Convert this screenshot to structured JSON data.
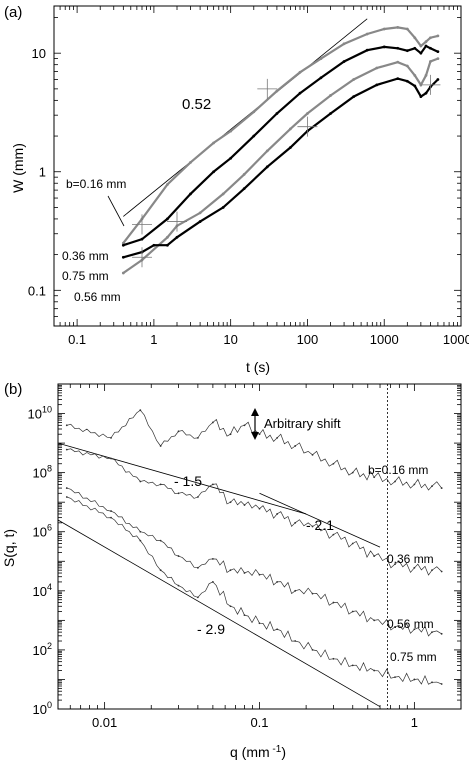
{
  "chart_data": [
    {
      "panel_label": "(a)",
      "type": "line",
      "xscale": "log",
      "yscale": "log",
      "xlabel": "t (s)",
      "ylabel": "W  (mm)",
      "xlim": [
        0.05,
        10000
      ],
      "ylim": [
        0.05,
        25
      ],
      "xticks": [
        {
          "v": 0.1,
          "label": "0.1"
        },
        {
          "v": 1,
          "label": "1"
        },
        {
          "v": 10,
          "label": "10"
        },
        {
          "v": 100,
          "label": "100"
        },
        {
          "v": 1000,
          "label": "1000"
        },
        {
          "v": 10000,
          "label": "10000"
        }
      ],
      "yticks": [
        {
          "v": 0.1,
          "label": "0.1"
        },
        {
          "v": 1,
          "label": "1"
        },
        {
          "v": 10,
          "label": "10"
        }
      ],
      "reference_line": {
        "label": "0.52",
        "x": [
          0.4,
          600
        ],
        "y": [
          0.42,
          19.5
        ]
      },
      "series": [
        {
          "name": "b=0.16 mm",
          "color": "#888888",
          "x": [
            0.4,
            0.7,
            1.5,
            3,
            6,
            10,
            20,
            40,
            80,
            150,
            300,
            600,
            1000,
            1500,
            2000,
            2500,
            3000,
            3500,
            4000,
            5000
          ],
          "y": [
            0.25,
            0.4,
            0.78,
            1.2,
            1.75,
            2.2,
            3.2,
            4.8,
            6.9,
            9.0,
            12.0,
            14.5,
            16.0,
            16.5,
            16.0,
            13.5,
            11.5,
            12.5,
            13.5,
            14.0
          ]
        },
        {
          "name": "0.36 mm",
          "color": "#000000",
          "x": [
            0.4,
            0.7,
            1.5,
            3,
            6,
            10,
            20,
            40,
            80,
            150,
            300,
            600,
            1000,
            1500,
            2000,
            2500,
            3000,
            3500,
            4000,
            5000
          ],
          "y": [
            0.24,
            0.27,
            0.4,
            0.65,
            1.0,
            1.3,
            2.0,
            3.1,
            4.6,
            6.2,
            8.5,
            10.6,
            11.3,
            11.0,
            10.5,
            11.0,
            10.0,
            11.5,
            11.0,
            10.3
          ]
        },
        {
          "name": "0.56 mm",
          "color": "#888888",
          "x": [
            0.4,
            0.7,
            1.5,
            2,
            4,
            8,
            15,
            30,
            60,
            100,
            200,
            400,
            800,
            1500,
            2000,
            2500,
            3000,
            3500,
            4000,
            5000
          ],
          "y": [
            0.14,
            0.18,
            0.28,
            0.35,
            0.45,
            0.65,
            0.95,
            1.5,
            2.3,
            3.1,
            4.4,
            6.0,
            7.5,
            8.4,
            7.8,
            6.5,
            5.4,
            6.5,
            8.5,
            9.0
          ]
        },
        {
          "name": "0.75 mm",
          "color": "#000000",
          "x": [
            0.4,
            0.7,
            1.0,
            1.5,
            2,
            4,
            8,
            15,
            30,
            60,
            100,
            200,
            400,
            800,
            1500,
            2000,
            2500,
            3000,
            3500,
            4000,
            5000
          ],
          "y": [
            0.19,
            0.21,
            0.24,
            0.24,
            0.28,
            0.38,
            0.5,
            0.72,
            1.1,
            1.6,
            2.2,
            3.1,
            4.3,
            5.4,
            6.1,
            5.8,
            5.3,
            4.3,
            4.6,
            5.2,
            6.0
          ]
        }
      ],
      "annotations": [
        {
          "text": "0.52"
        },
        {
          "text": "b=0.16 mm"
        },
        {
          "text": "0.36 mm"
        },
        {
          "text": "0.75 mm"
        },
        {
          "text": "0.56 mm"
        }
      ]
    },
    {
      "panel_label": "(b)",
      "type": "line",
      "xscale": "log",
      "yscale": "log",
      "xlabel": "q (mm -1)",
      "ylabel": "S(q, t)",
      "xlim": [
        0.005,
        2
      ],
      "ylim": [
        1,
        100000000000.0
      ],
      "xticks": [
        {
          "v": 0.01,
          "label": "0.01"
        },
        {
          "v": 0.1,
          "label": "0.1"
        },
        {
          "v": 1,
          "label": "1"
        }
      ],
      "yticks": [
        {
          "v": 1,
          "exp": "0"
        },
        {
          "v": 100,
          "exp": "2"
        },
        {
          "v": 10000,
          "exp": "4"
        },
        {
          "v": 1000000,
          "exp": "6"
        },
        {
          "v": 100000000,
          "exp": "8"
        },
        {
          "v": 10000000000,
          "exp": "10"
        }
      ],
      "vertical_line_q": 0.67,
      "annotations": [
        {
          "text": "Arbitrary shift"
        },
        {
          "text": "- 1.5"
        },
        {
          "text": "- 2.1"
        },
        {
          "text": "- 2.9"
        },
        {
          "text": "b=0.16 mm"
        },
        {
          "text": "0.36 mm"
        },
        {
          "text": "0.56 mm"
        },
        {
          "text": "0.75 mm"
        }
      ],
      "fit_lines": [
        {
          "slope": -1.5,
          "x": [
            0.005,
            0.2
          ],
          "y": [
            1000000000.0,
            4000000.0
          ]
        },
        {
          "slope": -2.1,
          "x": [
            0.1,
            0.6
          ],
          "y": [
            20000000.0,
            300000.0
          ]
        },
        {
          "slope": -2.9,
          "x": [
            0.005,
            0.6
          ],
          "y": [
            2500000.0,
            1.2
          ]
        }
      ],
      "series": [
        {
          "name": "b=0.16 mm",
          "color": "#333333",
          "x": [
            0.0057,
            0.011,
            0.017,
            0.023,
            0.03,
            0.04,
            0.05,
            0.065,
            0.08,
            0.1,
            0.13,
            0.17,
            0.22,
            0.3,
            0.4,
            0.55,
            0.75,
            1.0,
            1.3,
            1.5
          ],
          "y": [
            4000000000.0,
            1500000000.0,
            13000000000.0,
            800000000.0,
            2500000000.0,
            1500000000.0,
            5000000000.0,
            2000000000.0,
            4000000000.0,
            2000000000.0,
            1500000000.0,
            800000000.0,
            400000000.0,
            200000000.0,
            100000000.0,
            70000000.0,
            50000000.0,
            40000000.0,
            35000000.0,
            30000000.0
          ]
        },
        {
          "name": "0.36 mm",
          "color": "#333333",
          "x": [
            0.0057,
            0.011,
            0.017,
            0.023,
            0.03,
            0.04,
            0.05,
            0.065,
            0.08,
            0.1,
            0.13,
            0.17,
            0.22,
            0.3,
            0.4,
            0.55,
            0.75,
            1.0,
            1.3,
            1.5
          ],
          "y": [
            600000000.0,
            300000000.0,
            50000000.0,
            40000000.0,
            20000000.0,
            15000000.0,
            40000000.0,
            10000000.0,
            8000000.0,
            6000000.0,
            4000000.0,
            2000000.0,
            1500000.0,
            800000.0,
            400000.0,
            150000.0,
            80000.0,
            60000.0,
            50000.0,
            45000.0
          ]
        },
        {
          "name": "0.56 mm",
          "color": "#333333",
          "x": [
            0.0057,
            0.011,
            0.017,
            0.023,
            0.03,
            0.04,
            0.05,
            0.065,
            0.08,
            0.1,
            0.13,
            0.17,
            0.22,
            0.3,
            0.4,
            0.55,
            0.75,
            1.0,
            1.3,
            1.5
          ],
          "y": [
            30000000.0,
            5000000.0,
            1000000.0,
            500000.0,
            150000.0,
            60000.0,
            120000.0,
            50000.0,
            40000.0,
            35000.0,
            20000.0,
            10000.0,
            8000.0,
            4000.0,
            2000.0,
            1000.0,
            600.0,
            500.0,
            400.0,
            350.0
          ]
        },
        {
          "name": "0.75 mm",
          "color": "#333333",
          "x": [
            0.0057,
            0.011,
            0.017,
            0.023,
            0.03,
            0.04,
            0.05,
            0.065,
            0.08,
            0.1,
            0.13,
            0.17,
            0.22,
            0.3,
            0.4,
            0.55,
            0.75,
            1.0,
            1.3,
            1.5
          ],
          "y": [
            15000000.0,
            3000000.0,
            500000.0,
            50000.0,
            15000.0,
            6000.0,
            20000.0,
            3000.0,
            1500.0,
            800.0,
            500.0,
            200.0,
            100.0,
            50.0,
            30.0,
            20.0,
            12.0,
            10.0,
            8,
            7
          ]
        }
      ]
    }
  ]
}
